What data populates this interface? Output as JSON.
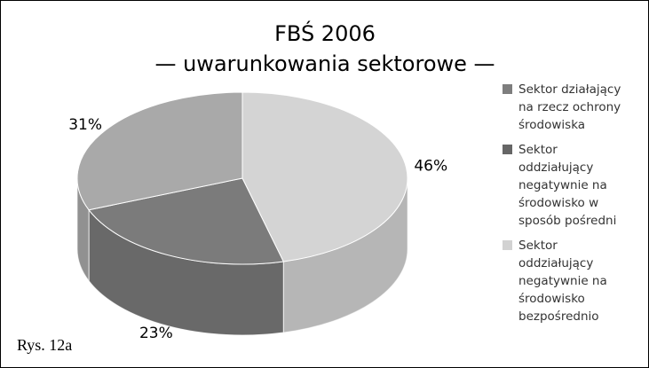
{
  "chart_data": {
    "type": "pie3d",
    "title": [
      "FBŚ 2006",
      "— uwarunkowania sektorowe —"
    ],
    "categories": [
      "Sektor działający na rzecz ochrony środowiska",
      "Sektor oddziałujący negatywnie na środowisko w sposób pośredni",
      "Sektor oddziałujący negatywnie na środowisko bezpośrednio"
    ],
    "values": [
      31,
      23,
      46
    ],
    "value_labels": [
      "31%",
      "23%",
      "46%"
    ],
    "colors": [
      "#a9a9a9",
      "#7b7b7b",
      "#d4d4d4"
    ],
    "legend_colors": [
      "#7e7e7e",
      "#666666",
      "#d2d2d2"
    ],
    "legend": "right"
  },
  "caption": "Rys. 12a"
}
